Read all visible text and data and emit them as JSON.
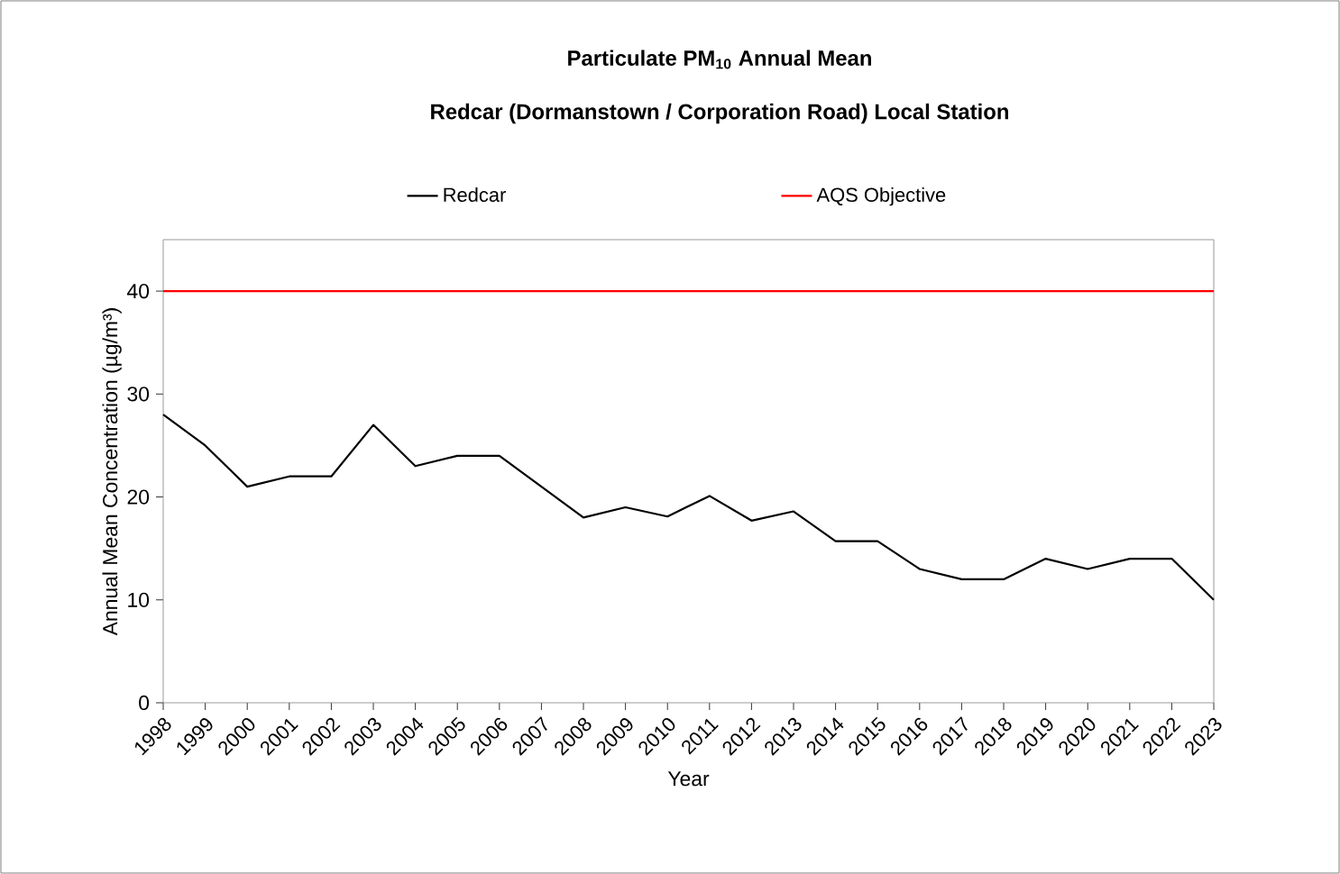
{
  "chart_data": {
    "type": "line",
    "title": "Particulate PM$_{10}$ Annual Mean",
    "subtitle": "Redcar (Dormanstown / Corporation Road) Local Station",
    "xlabel": "Year",
    "ylabel": "Annual Mean Concentration (µg/m³)",
    "categories": [
      "1998",
      "1999",
      "2000",
      "2001",
      "2002",
      "2003",
      "2004",
      "2005",
      "2006",
      "2007",
      "2008",
      "2009",
      "2010",
      "2011",
      "2012",
      "2013",
      "2014",
      "2015",
      "2016",
      "2017",
      "2018",
      "2019",
      "2020",
      "2021",
      "2022",
      "2023"
    ],
    "series": [
      {
        "name": "Redcar",
        "color": "#000000",
        "values": [
          28,
          25,
          21,
          22,
          22,
          27,
          23,
          24,
          24,
          21,
          18,
          19,
          18.1,
          20.1,
          17.7,
          18.6,
          15.7,
          15.7,
          13,
          12,
          12,
          14,
          13,
          14,
          14,
          10
        ]
      },
      {
        "name": "AQS Objective",
        "color": "#ff0000",
        "values": [
          40,
          40,
          40,
          40,
          40,
          40,
          40,
          40,
          40,
          40,
          40,
          40,
          40,
          40,
          40,
          40,
          40,
          40,
          40,
          40,
          40,
          40,
          40,
          40,
          40,
          40
        ]
      }
    ],
    "ylim": [
      0,
      45
    ],
    "yticks": [
      0,
      10,
      20,
      30,
      40
    ],
    "legend": "top",
    "marker": "none",
    "line_style": "solid"
  }
}
